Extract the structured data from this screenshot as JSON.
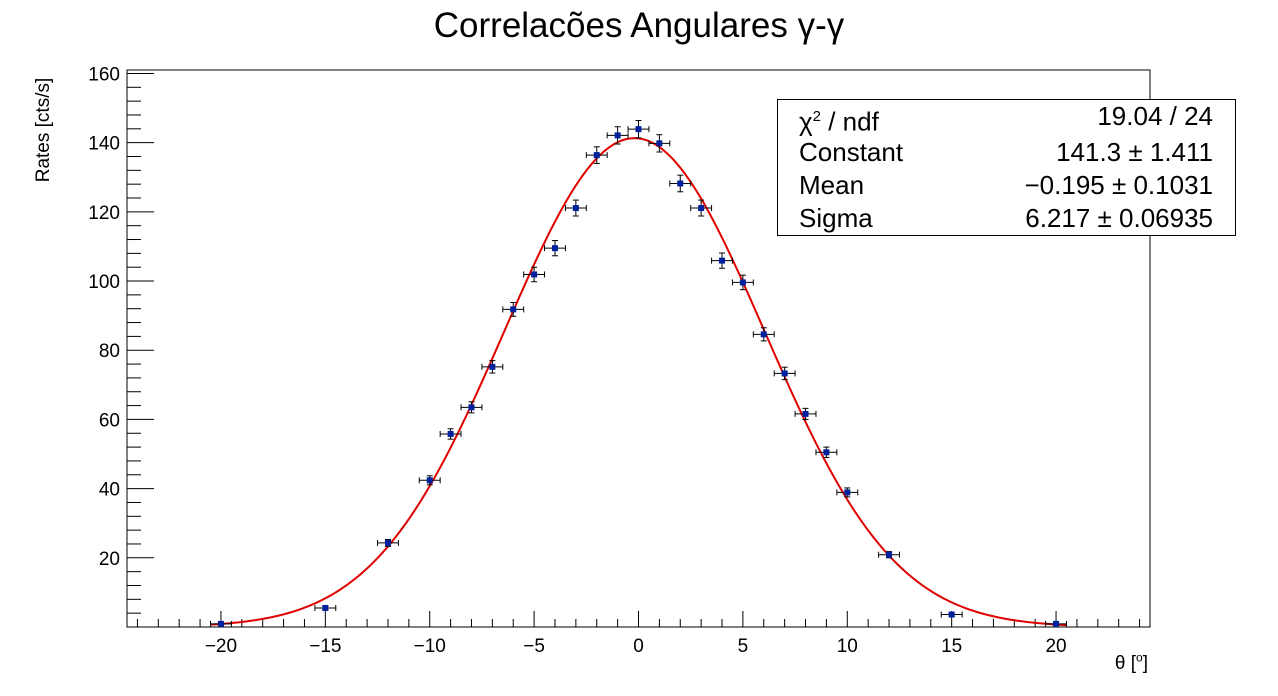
{
  "title": "Correlacões Angulares γ-γ",
  "stats": [
    {
      "key_html": "χ<sup>2</sup> / ndf",
      "key": "χ2 / ndf",
      "value": "19.04 / 24"
    },
    {
      "key": "Constant",
      "value": "141.3 ± 1.411"
    },
    {
      "key": "Mean",
      "value": "−0.195 ± 0.1031"
    },
    {
      "key": "Sigma",
      "value": "6.217 ± 0.06935"
    }
  ],
  "colors": {
    "points": "#00219e",
    "fit": "#e00000",
    "axes": "#000000"
  },
  "chart_data": {
    "type": "scatter",
    "title": "Correlacões Angulares γ-γ",
    "xlabel": "θ [°]",
    "ylabel": "Rates [cts/s]",
    "xlim": [
      -24.5,
      24.5
    ],
    "ylim": [
      0,
      161
    ],
    "xticks": [
      -20,
      -15,
      -10,
      -5,
      0,
      5,
      10,
      15,
      20
    ],
    "xtick_labels": [
      "−20",
      "−15",
      "−10",
      "−5",
      "0",
      "5",
      "10",
      "15",
      "20"
    ],
    "yticks": [
      20,
      40,
      60,
      80,
      100,
      120,
      140,
      160
    ],
    "ytick_labels": [
      "20",
      "40",
      "60",
      "80",
      "100",
      "120",
      "140",
      "160"
    ],
    "grid": false,
    "series": [
      {
        "type": "points_with_errors",
        "x_error": 0.5,
        "points": [
          {
            "x": -20,
            "y": 0.9,
            "err": 0.5
          },
          {
            "x": -15,
            "y": 5.5,
            "err": 0.6
          },
          {
            "x": -12,
            "y": 24.3,
            "err": 1.0
          },
          {
            "x": -10,
            "y": 42.4,
            "err": 1.3
          },
          {
            "x": -9,
            "y": 55.8,
            "err": 1.5
          },
          {
            "x": -8,
            "y": 63.5,
            "err": 1.6
          },
          {
            "x": -7,
            "y": 75.2,
            "err": 1.8
          },
          {
            "x": -6,
            "y": 91.8,
            "err": 2.0
          },
          {
            "x": -5,
            "y": 101.9,
            "err": 2.1
          },
          {
            "x": -4,
            "y": 109.5,
            "err": 2.2
          },
          {
            "x": -3,
            "y": 121.1,
            "err": 2.3
          },
          {
            "x": -2,
            "y": 136.4,
            "err": 2.4
          },
          {
            "x": -1,
            "y": 142.1,
            "err": 2.5
          },
          {
            "x": 0,
            "y": 143.9,
            "err": 2.5
          },
          {
            "x": 1,
            "y": 139.8,
            "err": 2.5
          },
          {
            "x": 2,
            "y": 128.2,
            "err": 2.4
          },
          {
            "x": 3,
            "y": 121.1,
            "err": 2.3
          },
          {
            "x": 4,
            "y": 105.9,
            "err": 2.2
          },
          {
            "x": 5,
            "y": 99.6,
            "err": 2.1
          },
          {
            "x": 6,
            "y": 84.6,
            "err": 1.9
          },
          {
            "x": 7,
            "y": 73.3,
            "err": 1.8
          },
          {
            "x": 8,
            "y": 61.6,
            "err": 1.6
          },
          {
            "x": 9,
            "y": 50.5,
            "err": 1.5
          },
          {
            "x": 10,
            "y": 38.9,
            "err": 1.3
          },
          {
            "x": 12,
            "y": 20.9,
            "err": 0.9
          },
          {
            "x": 15,
            "y": 3.6,
            "err": 0.5
          },
          {
            "x": 20,
            "y": 0.9,
            "err": 0.4
          }
        ]
      },
      {
        "type": "gaussian_fit",
        "constant": 141.3,
        "mean": -0.195,
        "sigma": 6.217,
        "xrange": [
          -20.5,
          20.5
        ]
      }
    ]
  }
}
